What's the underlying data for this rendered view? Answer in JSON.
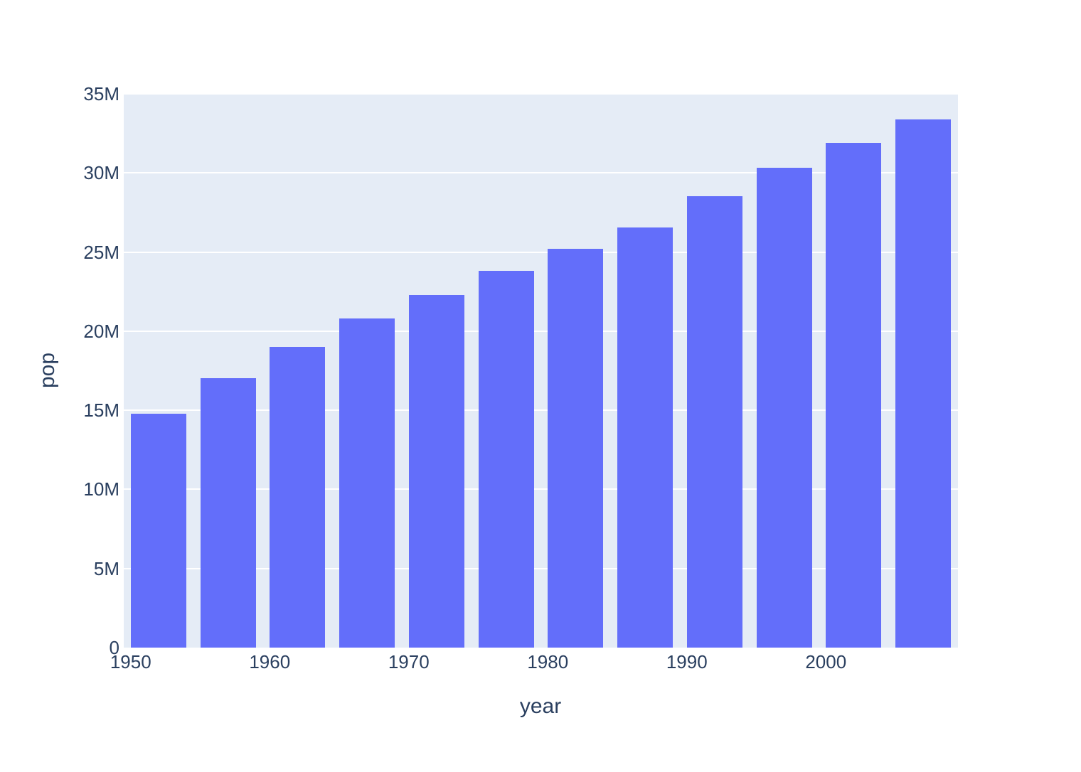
{
  "figure": {
    "paper_bgcolor": "#ffffff",
    "plot_bgcolor": "#e5ecf6",
    "grid_color": "#ffffff",
    "bar_color": "#636efa",
    "text_color": "#2a3f5f"
  },
  "chart_data": {
    "type": "bar",
    "xlabel": "year",
    "ylabel": "pop",
    "grid": true,
    "legend": false,
    "x": [
      1952,
      1957,
      1962,
      1967,
      1972,
      1977,
      1982,
      1987,
      1992,
      1997,
      2002,
      2007
    ],
    "y": [
      14785584,
      17010154,
      18985849,
      20819767,
      22284500,
      23796400,
      25201900,
      26549700,
      28523502,
      30305843,
      31902268,
      33390141
    ],
    "xlim": [
      1949.5,
      2009.5
    ],
    "ylim": [
      0,
      35000000
    ],
    "bar_width_x_units": 4,
    "x_ticks": [
      1950,
      1960,
      1970,
      1980,
      1990,
      2000
    ],
    "x_tick_labels": [
      "1950",
      "1960",
      "1970",
      "1980",
      "1990",
      "2000"
    ],
    "y_ticks": [
      0,
      5000000,
      10000000,
      15000000,
      20000000,
      25000000,
      30000000,
      35000000
    ],
    "y_tick_labels": [
      "0",
      "5M",
      "10M",
      "15M",
      "20M",
      "25M",
      "30M",
      "35M"
    ]
  }
}
